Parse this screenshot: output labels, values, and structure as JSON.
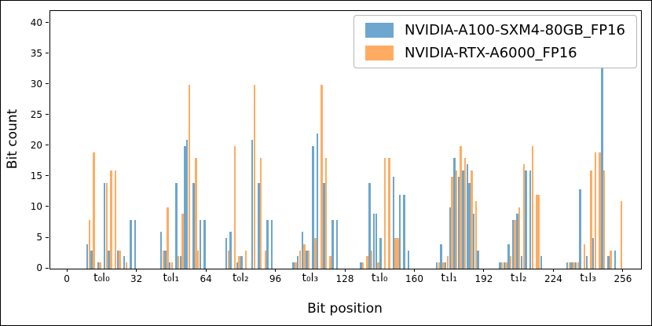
{
  "chart_data": {
    "type": "bar",
    "title": "",
    "xlabel": "Bit position",
    "ylabel": "Bit count",
    "xlim": [
      0,
      256
    ],
    "ylim": [
      0,
      42
    ],
    "grid": false,
    "legend_position": "upper right",
    "x_major_ticks": [
      0,
      32,
      64,
      96,
      128,
      160,
      192,
      224,
      256
    ],
    "x_group_ticks": [
      {
        "pos": 16,
        "label": "t₀l₀"
      },
      {
        "pos": 48,
        "label": "t₀l₁"
      },
      {
        "pos": 80,
        "label": "t₀l₂"
      },
      {
        "pos": 112,
        "label": "t₀l₃"
      },
      {
        "pos": 144,
        "label": "t₁l₀"
      },
      {
        "pos": 176,
        "label": "t₁l₁"
      },
      {
        "pos": 208,
        "label": "t₁l₂"
      },
      {
        "pos": 240,
        "label": "t₁l₃"
      }
    ],
    "y_ticks": [
      0,
      5,
      10,
      15,
      20,
      25,
      30,
      35,
      40
    ],
    "series": [
      {
        "name": "NVIDIA-A100-SXM4-80GB_FP16",
        "color": "#6da6ce",
        "bars": [
          [
            9,
            4
          ],
          [
            11,
            3
          ],
          [
            14,
            1
          ],
          [
            17,
            14
          ],
          [
            19,
            3
          ],
          [
            23,
            3
          ],
          [
            26,
            2
          ],
          [
            29,
            8
          ],
          [
            31,
            8
          ],
          [
            43,
            6
          ],
          [
            45,
            3
          ],
          [
            47,
            1
          ],
          [
            50,
            14
          ],
          [
            52,
            2
          ],
          [
            54,
            20
          ],
          [
            55,
            21
          ],
          [
            58,
            14
          ],
          [
            61,
            8
          ],
          [
            63,
            8
          ],
          [
            73,
            5
          ],
          [
            75,
            6
          ],
          [
            78,
            1
          ],
          [
            80,
            2
          ],
          [
            85,
            21
          ],
          [
            88,
            14
          ],
          [
            92,
            8
          ],
          [
            94,
            8
          ],
          [
            104,
            1
          ],
          [
            106,
            2
          ],
          [
            108,
            6
          ],
          [
            110,
            3
          ],
          [
            113,
            20
          ],
          [
            115,
            22
          ],
          [
            118,
            14
          ],
          [
            122,
            8
          ],
          [
            124,
            8
          ],
          [
            135,
            1
          ],
          [
            139,
            14
          ],
          [
            141,
            9
          ],
          [
            142,
            9
          ],
          [
            144,
            5
          ],
          [
            150,
            15
          ],
          [
            153,
            12
          ],
          [
            155,
            12
          ],
          [
            157,
            3
          ],
          [
            170,
            1
          ],
          [
            172,
            4
          ],
          [
            174,
            1
          ],
          [
            176,
            10
          ],
          [
            178,
            18
          ],
          [
            180,
            15
          ],
          [
            182,
            16
          ],
          [
            184,
            17
          ],
          [
            185,
            14
          ],
          [
            187,
            9
          ],
          [
            189,
            3
          ],
          [
            199,
            1
          ],
          [
            201,
            1
          ],
          [
            203,
            4
          ],
          [
            205,
            8
          ],
          [
            207,
            9
          ],
          [
            209,
            2
          ],
          [
            211,
            16
          ],
          [
            213,
            16
          ],
          [
            218,
            2
          ],
          [
            230,
            1
          ],
          [
            232,
            1
          ],
          [
            234,
            1
          ],
          [
            236,
            13
          ],
          [
            239,
            2
          ],
          [
            242,
            5
          ],
          [
            246,
            33
          ],
          [
            249,
            2
          ],
          [
            252,
            3
          ]
        ]
      },
      {
        "name": "NVIDIA-RTX-A6000_FP16",
        "color": "#ffac62",
        "bars": [
          [
            10,
            8
          ],
          [
            12,
            19
          ],
          [
            15,
            1
          ],
          [
            18,
            14
          ],
          [
            20,
            16
          ],
          [
            22,
            16
          ],
          [
            24,
            3
          ],
          [
            27,
            1
          ],
          [
            44,
            3
          ],
          [
            46,
            10
          ],
          [
            48,
            1
          ],
          [
            51,
            2
          ],
          [
            53,
            9
          ],
          [
            56,
            30
          ],
          [
            59,
            18
          ],
          [
            60,
            3
          ],
          [
            74,
            3
          ],
          [
            77,
            20
          ],
          [
            79,
            2
          ],
          [
            82,
            3
          ],
          [
            86,
            30
          ],
          [
            89,
            18
          ],
          [
            91,
            3
          ],
          [
            105,
            1
          ],
          [
            107,
            3
          ],
          [
            109,
            4
          ],
          [
            111,
            3
          ],
          [
            114,
            5
          ],
          [
            117,
            30
          ],
          [
            119,
            18
          ],
          [
            121,
            2
          ],
          [
            136,
            1
          ],
          [
            138,
            2
          ],
          [
            140,
            3
          ],
          [
            143,
            1
          ],
          [
            146,
            18
          ],
          [
            148,
            18
          ],
          [
            151,
            5
          ],
          [
            152,
            5
          ],
          [
            171,
            1
          ],
          [
            173,
            1
          ],
          [
            175,
            2
          ],
          [
            177,
            15
          ],
          [
            179,
            16
          ],
          [
            181,
            20
          ],
          [
            183,
            18
          ],
          [
            186,
            16
          ],
          [
            188,
            11
          ],
          [
            200,
            1
          ],
          [
            202,
            1
          ],
          [
            204,
            2
          ],
          [
            206,
            8
          ],
          [
            208,
            10
          ],
          [
            210,
            17
          ],
          [
            214,
            20
          ],
          [
            216,
            12
          ],
          [
            217,
            12
          ],
          [
            231,
            1
          ],
          [
            233,
            1
          ],
          [
            235,
            1
          ],
          [
            238,
            4
          ],
          [
            241,
            16
          ],
          [
            243,
            19
          ],
          [
            245,
            19
          ],
          [
            247,
            16
          ],
          [
            250,
            3
          ],
          [
            255,
            11
          ]
        ]
      }
    ]
  }
}
